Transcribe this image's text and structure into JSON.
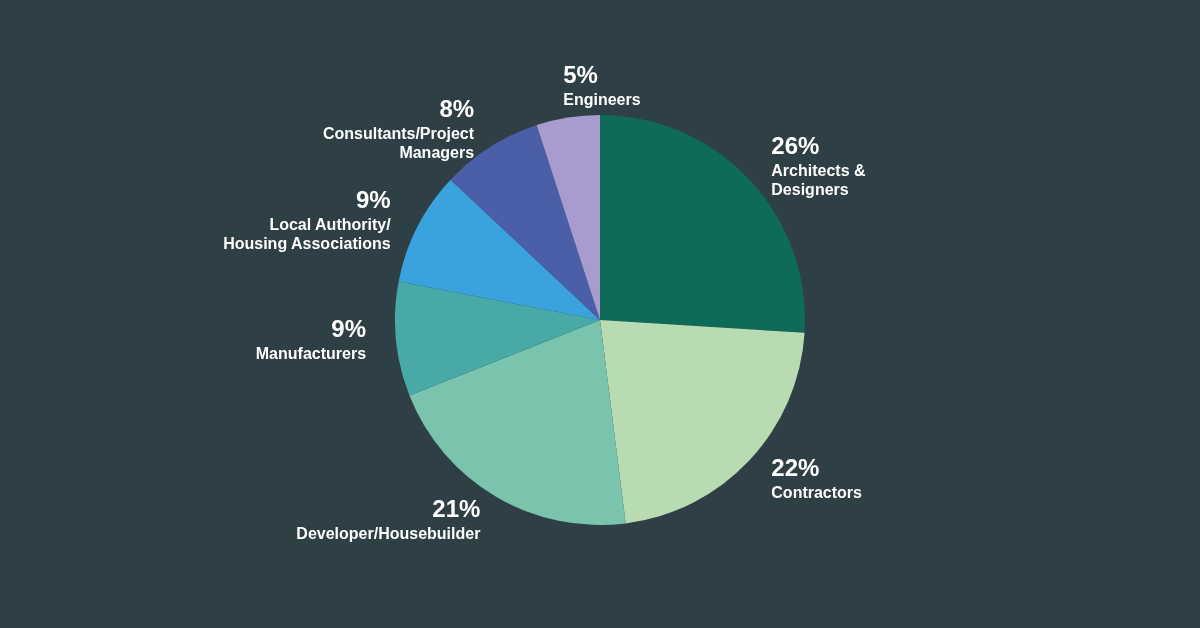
{
  "chart_data": {
    "type": "pie",
    "categories": [
      "Architects & Designers",
      "Contractors",
      "Developer/Housebuilder",
      "Manufacturers",
      "Local Authority/ Housing Associations",
      "Consultants/Project Managers",
      "Engineers"
    ],
    "values": [
      26,
      22,
      21,
      9,
      9,
      8,
      5
    ],
    "value_labels": [
      "26%",
      "22%",
      "21%",
      "9%",
      "9%",
      "8%",
      "5%"
    ],
    "colors": [
      "#0e6b5a",
      "#b8dbb2",
      "#7ac4ae",
      "#48a9a6",
      "#3aa3dd",
      "#4a5fa8",
      "#a79bd0"
    ]
  }
}
